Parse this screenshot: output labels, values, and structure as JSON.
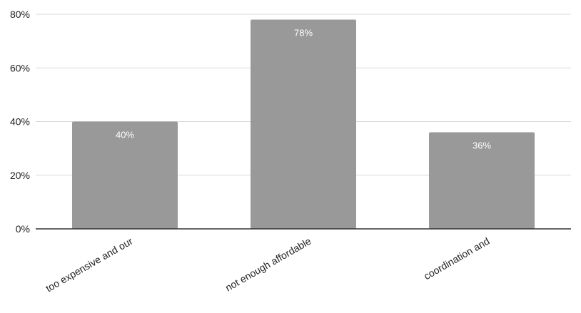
{
  "chart_data": {
    "type": "bar",
    "title": "",
    "xlabel": "",
    "ylabel": "",
    "categories": [
      "too expensive and our",
      "not enough affordable",
      "coordination and"
    ],
    "values": [
      40,
      78,
      36
    ],
    "data_labels": [
      "40%",
      "78%",
      "36%"
    ],
    "ylim": [
      0,
      80
    ],
    "yticks": [
      0,
      20,
      40,
      60,
      80
    ],
    "ytick_labels": [
      "0%",
      "20%",
      "40%",
      "60%",
      "80%"
    ],
    "grid": true,
    "legend": "none",
    "colors": {
      "bar": "#999999",
      "grid": "#d9d9d9",
      "axis": "#333333",
      "data_label": "#ffffff"
    }
  }
}
